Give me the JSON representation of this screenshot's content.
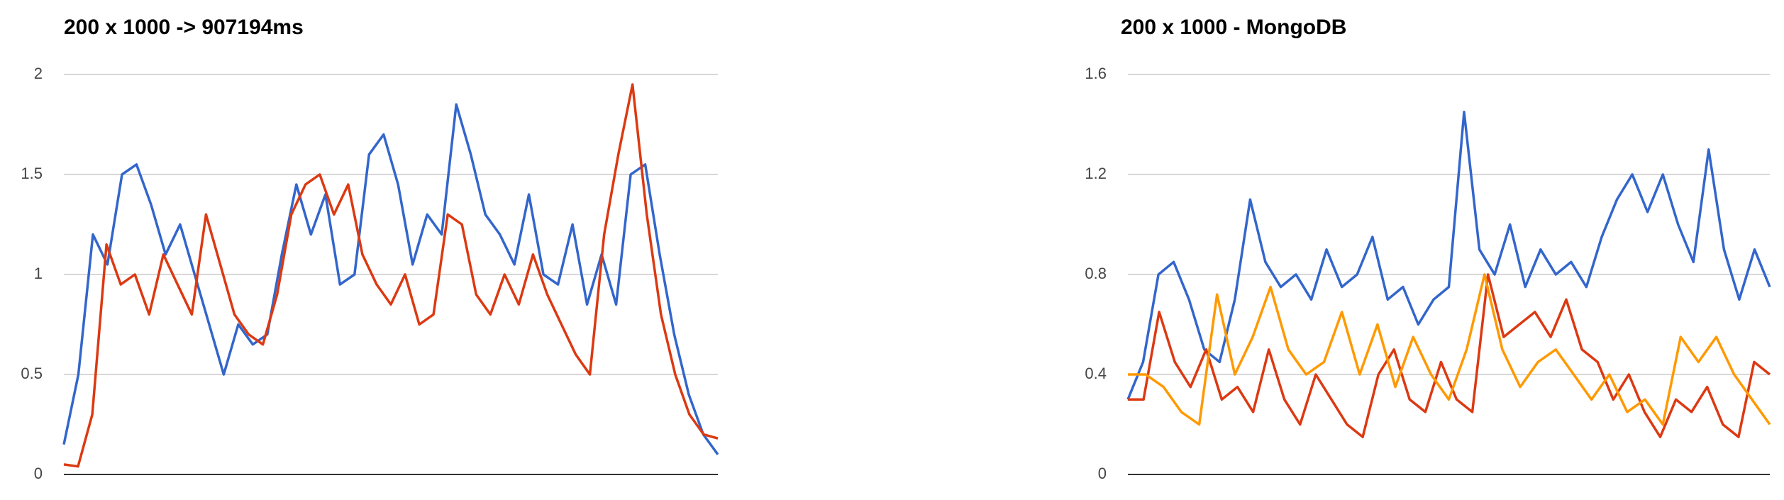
{
  "chart_data": [
    {
      "type": "line",
      "title": "200 x 1000 -> 907194ms",
      "ylim": [
        0,
        2
      ],
      "yticks": [
        0,
        0.5,
        1,
        1.5,
        2
      ],
      "grid": true,
      "series": [
        {
          "color": "#3366cc",
          "values": [
            0.15,
            0.5,
            1.2,
            1.05,
            1.5,
            1.55,
            1.35,
            1.1,
            1.25,
            1.0,
            0.75,
            0.5,
            0.75,
            0.65,
            0.7,
            1.1,
            1.45,
            1.2,
            1.4,
            0.95,
            1.0,
            1.6,
            1.7,
            1.45,
            1.05,
            1.3,
            1.2,
            1.85,
            1.6,
            1.3,
            1.2,
            1.05,
            1.4,
            1.0,
            0.95,
            1.25,
            0.85,
            1.1,
            0.85,
            1.5,
            1.55,
            1.1,
            0.7,
            0.4,
            0.2,
            0.1
          ]
        },
        {
          "color": "#dc3912",
          "values": [
            0.05,
            0.04,
            0.3,
            1.15,
            0.95,
            1.0,
            0.8,
            1.1,
            0.95,
            0.8,
            1.3,
            1.05,
            0.8,
            0.7,
            0.65,
            0.9,
            1.3,
            1.45,
            1.5,
            1.3,
            1.45,
            1.1,
            0.95,
            0.85,
            1.0,
            0.75,
            0.8,
            1.3,
            1.25,
            0.9,
            0.8,
            1.0,
            0.85,
            1.1,
            0.9,
            0.75,
            0.6,
            0.5,
            1.2,
            1.6,
            1.95,
            1.3,
            0.8,
            0.5,
            0.3,
            0.2,
            0.18
          ]
        }
      ]
    },
    {
      "type": "line",
      "title": "200 x 1000 - MongoDB",
      "ylim": [
        0,
        1.6
      ],
      "yticks": [
        0,
        0.4,
        0.8,
        1.2,
        1.6
      ],
      "grid": true,
      "series": [
        {
          "color": "#3366cc",
          "values": [
            0.3,
            0.45,
            0.8,
            0.85,
            0.7,
            0.5,
            0.45,
            0.7,
            1.1,
            0.85,
            0.75,
            0.8,
            0.7,
            0.9,
            0.75,
            0.8,
            0.95,
            0.7,
            0.75,
            0.6,
            0.7,
            0.75,
            1.45,
            0.9,
            0.8,
            1.0,
            0.75,
            0.9,
            0.8,
            0.85,
            0.75,
            0.95,
            1.1,
            1.2,
            1.05,
            1.2,
            1.0,
            0.85,
            1.3,
            0.9,
            0.7,
            0.9,
            0.75
          ]
        },
        {
          "color": "#dc3912",
          "values": [
            0.3,
            0.3,
            0.65,
            0.45,
            0.35,
            0.5,
            0.3,
            0.35,
            0.25,
            0.5,
            0.3,
            0.2,
            0.4,
            0.3,
            0.2,
            0.15,
            0.4,
            0.5,
            0.3,
            0.25,
            0.45,
            0.3,
            0.25,
            0.8,
            0.55,
            0.6,
            0.65,
            0.55,
            0.7,
            0.5,
            0.45,
            0.3,
            0.4,
            0.25,
            0.15,
            0.3,
            0.25,
            0.35,
            0.2,
            0.15,
            0.45,
            0.4
          ]
        },
        {
          "color": "#ff9900",
          "values": [
            0.4,
            0.4,
            0.35,
            0.25,
            0.2,
            0.72,
            0.4,
            0.55,
            0.75,
            0.5,
            0.4,
            0.45,
            0.65,
            0.4,
            0.6,
            0.35,
            0.55,
            0.4,
            0.3,
            0.5,
            0.8,
            0.5,
            0.35,
            0.45,
            0.5,
            0.4,
            0.3,
            0.4,
            0.25,
            0.3,
            0.2,
            0.55,
            0.45,
            0.55,
            0.4,
            0.3,
            0.2
          ]
        }
      ]
    }
  ]
}
